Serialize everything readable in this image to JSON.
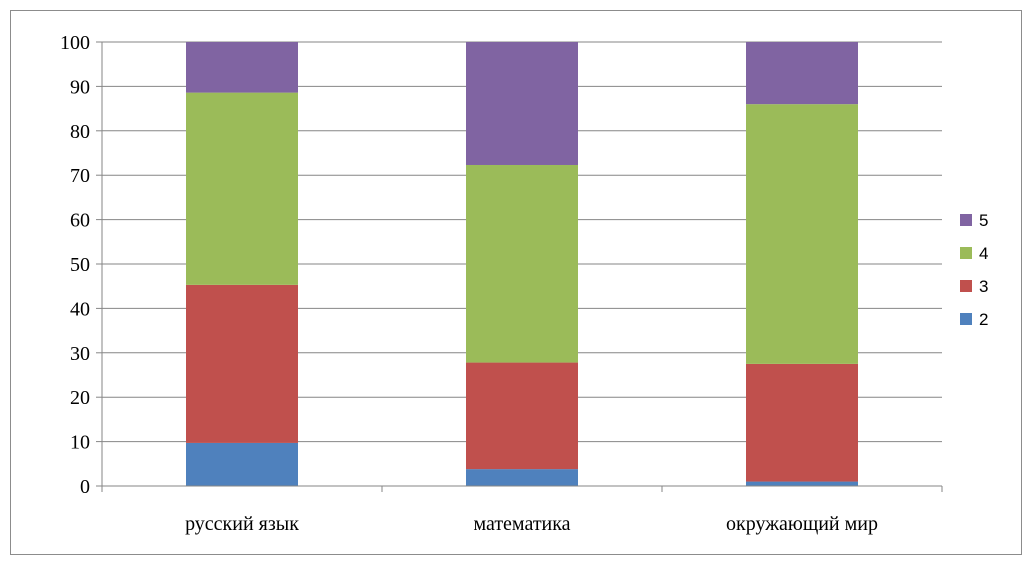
{
  "chart_data": {
    "type": "bar",
    "stacked": true,
    "title": "",
    "xlabel": "",
    "ylabel": "",
    "categories": [
      "русский язык",
      "математика",
      "окружающий мир"
    ],
    "ylim": [
      0,
      100
    ],
    "yticks": [
      "0",
      "10",
      "20",
      "30",
      "40",
      "50",
      "60",
      "70",
      "80",
      "90",
      "100"
    ],
    "grid": true,
    "legend_position": "right",
    "series": [
      {
        "name": "2",
        "color": "#4f81bd",
        "values": [
          9.7,
          3.8,
          1.0
        ]
      },
      {
        "name": "3",
        "color": "#c0504d",
        "values": [
          35.6,
          24.0,
          26.5
        ]
      },
      {
        "name": "4",
        "color": "#9bbb59",
        "values": [
          43.3,
          44.5,
          58.5
        ]
      },
      {
        "name": "5",
        "color": "#8064a2",
        "values": [
          11.4,
          27.7,
          14.0
        ]
      }
    ]
  }
}
